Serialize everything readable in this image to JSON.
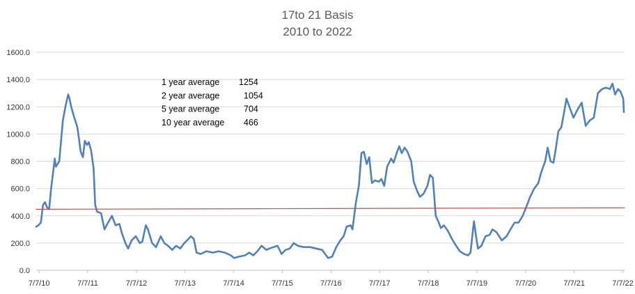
{
  "chart_data": {
    "type": "line",
    "title": "17to 21 Basis",
    "subtitle": "2010 to 2022",
    "xlabel": "",
    "ylabel": "",
    "ylim": [
      0,
      1600
    ],
    "y_ticks": [
      0,
      200,
      400,
      600,
      800,
      1000,
      1200,
      1400,
      1600
    ],
    "y_tick_labels": [
      "0.0",
      "200.0",
      "400.0",
      "600.0",
      "800.0",
      "1000.0",
      "1200.0",
      "1400.0",
      "1600.0"
    ],
    "x_range": [
      "2010-06-15",
      "2022-07-20"
    ],
    "x_ticks": [
      "2010-07-07",
      "2011-07-07",
      "2012-07-07",
      "2013-07-07",
      "2014-07-07",
      "2015-07-07",
      "2016-07-07",
      "2017-07-07",
      "2018-07-07",
      "2019-07-07",
      "2020-07-07",
      "2021-07-07",
      "2022-07-07"
    ],
    "x_tick_labels": [
      "7/7/10",
      "7/7/11",
      "7/7/12",
      "7/7/13",
      "7/7/14",
      "7/7/15",
      "7/7/16",
      "7/7/17",
      "7/7/18",
      "7/7/19",
      "7/7/20",
      "7/7/21",
      "7/7/22"
    ],
    "grid": true,
    "legend": "none",
    "series": [
      {
        "color": "#4f81bd",
        "points": [
          [
            "2010-06-15",
            320
          ],
          [
            "2010-07-01",
            330
          ],
          [
            "2010-07-20",
            350
          ],
          [
            "2010-08-05",
            480
          ],
          [
            "2010-08-20",
            500
          ],
          [
            "2010-09-05",
            460
          ],
          [
            "2010-09-20",
            450
          ],
          [
            "2010-10-05",
            600
          ],
          [
            "2010-10-20",
            720
          ],
          [
            "2010-11-01",
            820
          ],
          [
            "2010-11-10",
            760
          ],
          [
            "2010-12-05",
            800
          ],
          [
            "2011-01-01",
            1100
          ],
          [
            "2011-01-20",
            1200
          ],
          [
            "2011-02-10",
            1290
          ],
          [
            "2011-02-20",
            1260
          ],
          [
            "2011-03-05",
            1200
          ],
          [
            "2011-03-25",
            1130
          ],
          [
            "2011-04-20",
            1050
          ],
          [
            "2011-05-15",
            870
          ],
          [
            "2011-06-01",
            830
          ],
          [
            "2011-06-15",
            950
          ],
          [
            "2011-07-01",
            920
          ],
          [
            "2011-07-15",
            940
          ],
          [
            "2011-08-01",
            880
          ],
          [
            "2011-08-20",
            750
          ],
          [
            "2011-09-01",
            480
          ],
          [
            "2011-09-15",
            430
          ],
          [
            "2011-10-15",
            420
          ],
          [
            "2011-11-10",
            300
          ],
          [
            "2011-12-01",
            340
          ],
          [
            "2012-01-05",
            400
          ],
          [
            "2012-02-01",
            330
          ],
          [
            "2012-03-01",
            340
          ],
          [
            "2012-03-20",
            270
          ],
          [
            "2012-04-15",
            200
          ],
          [
            "2012-05-05",
            160
          ],
          [
            "2012-06-01",
            220
          ],
          [
            "2012-07-01",
            250
          ],
          [
            "2012-08-01",
            200
          ],
          [
            "2012-08-20",
            210
          ],
          [
            "2012-09-15",
            330
          ],
          [
            "2012-10-01",
            300
          ],
          [
            "2012-11-01",
            200
          ],
          [
            "2012-12-01",
            170
          ],
          [
            "2013-01-05",
            250
          ],
          [
            "2013-02-01",
            200
          ],
          [
            "2013-03-01",
            180
          ],
          [
            "2013-04-01",
            150
          ],
          [
            "2013-05-01",
            180
          ],
          [
            "2013-06-01",
            160
          ],
          [
            "2013-07-01",
            200
          ],
          [
            "2013-08-01",
            230
          ],
          [
            "2013-08-20",
            250
          ],
          [
            "2013-09-10",
            230
          ],
          [
            "2013-10-01",
            130
          ],
          [
            "2013-11-01",
            120
          ],
          [
            "2013-12-15",
            140
          ],
          [
            "2014-02-01",
            130
          ],
          [
            "2014-03-15",
            140
          ],
          [
            "2014-05-01",
            130
          ],
          [
            "2014-06-15",
            110
          ],
          [
            "2014-07-10",
            90
          ],
          [
            "2014-08-15",
            100
          ],
          [
            "2014-10-01",
            110
          ],
          [
            "2014-11-01",
            130
          ],
          [
            "2014-12-01",
            110
          ],
          [
            "2015-01-01",
            140
          ],
          [
            "2015-02-01",
            180
          ],
          [
            "2015-03-10",
            150
          ],
          [
            "2015-04-01",
            160
          ],
          [
            "2015-05-01",
            170
          ],
          [
            "2015-06-01",
            180
          ],
          [
            "2015-07-01",
            120
          ],
          [
            "2015-08-01",
            150
          ],
          [
            "2015-09-01",
            160
          ],
          [
            "2015-10-01",
            200
          ],
          [
            "2015-11-01",
            180
          ],
          [
            "2015-12-15",
            170
          ],
          [
            "2016-02-01",
            170
          ],
          [
            "2016-03-15",
            160
          ],
          [
            "2016-05-01",
            150
          ],
          [
            "2016-06-15",
            90
          ],
          [
            "2016-07-15",
            100
          ],
          [
            "2016-08-15",
            170
          ],
          [
            "2016-09-15",
            220
          ],
          [
            "2016-10-10",
            250
          ],
          [
            "2016-11-01",
            320
          ],
          [
            "2016-12-01",
            330
          ],
          [
            "2016-12-15",
            300
          ],
          [
            "2017-01-10",
            500
          ],
          [
            "2017-02-01",
            620
          ],
          [
            "2017-02-20",
            860
          ],
          [
            "2017-03-10",
            870
          ],
          [
            "2017-04-01",
            780
          ],
          [
            "2017-04-20",
            830
          ],
          [
            "2017-05-10",
            640
          ],
          [
            "2017-06-01",
            660
          ],
          [
            "2017-07-01",
            650
          ],
          [
            "2017-07-20",
            670
          ],
          [
            "2017-08-10",
            620
          ],
          [
            "2017-09-01",
            760
          ],
          [
            "2017-10-01",
            820
          ],
          [
            "2017-10-20",
            790
          ],
          [
            "2017-11-15",
            870
          ],
          [
            "2017-12-01",
            910
          ],
          [
            "2017-12-20",
            860
          ],
          [
            "2018-01-10",
            900
          ],
          [
            "2018-02-01",
            870
          ],
          [
            "2018-03-01",
            800
          ],
          [
            "2018-03-20",
            650
          ],
          [
            "2018-04-15",
            580
          ],
          [
            "2018-05-05",
            540
          ],
          [
            "2018-06-01",
            560
          ],
          [
            "2018-07-01",
            620
          ],
          [
            "2018-07-20",
            700
          ],
          [
            "2018-08-10",
            680
          ],
          [
            "2018-09-01",
            400
          ],
          [
            "2018-09-20",
            360
          ],
          [
            "2018-10-10",
            310
          ],
          [
            "2018-11-01",
            330
          ],
          [
            "2018-12-01",
            290
          ],
          [
            "2019-01-01",
            230
          ],
          [
            "2019-02-01",
            180
          ],
          [
            "2019-03-01",
            140
          ],
          [
            "2019-04-01",
            120
          ],
          [
            "2019-05-01",
            110
          ],
          [
            "2019-05-20",
            130
          ],
          [
            "2019-06-15",
            360
          ],
          [
            "2019-07-01",
            250
          ],
          [
            "2019-07-15",
            160
          ],
          [
            "2019-08-10",
            180
          ],
          [
            "2019-09-10",
            250
          ],
          [
            "2019-10-10",
            260
          ],
          [
            "2019-11-01",
            300
          ],
          [
            "2019-12-01",
            280
          ],
          [
            "2020-01-10",
            220
          ],
          [
            "2020-02-15",
            250
          ],
          [
            "2020-03-15",
            300
          ],
          [
            "2020-04-15",
            350
          ],
          [
            "2020-05-15",
            350
          ],
          [
            "2020-06-15",
            400
          ],
          [
            "2020-07-10",
            460
          ],
          [
            "2020-08-10",
            540
          ],
          [
            "2020-09-10",
            600
          ],
          [
            "2020-10-10",
            640
          ],
          [
            "2020-11-01",
            720
          ],
          [
            "2020-12-01",
            800
          ],
          [
            "2020-12-20",
            900
          ],
          [
            "2021-01-10",
            800
          ],
          [
            "2021-02-01",
            790
          ],
          [
            "2021-02-20",
            900
          ],
          [
            "2021-03-10",
            1020
          ],
          [
            "2021-04-01",
            1050
          ],
          [
            "2021-04-20",
            1150
          ],
          [
            "2021-05-10",
            1260
          ],
          [
            "2021-06-01",
            1200
          ],
          [
            "2021-07-01",
            1120
          ],
          [
            "2021-08-01",
            1180
          ],
          [
            "2021-09-01",
            1230
          ],
          [
            "2021-10-01",
            1060
          ],
          [
            "2021-11-01",
            1100
          ],
          [
            "2021-12-01",
            1120
          ],
          [
            "2022-01-01",
            1300
          ],
          [
            "2022-02-01",
            1330
          ],
          [
            "2022-03-01",
            1340
          ],
          [
            "2022-04-01",
            1330
          ],
          [
            "2022-04-20",
            1370
          ],
          [
            "2022-05-10",
            1290
          ],
          [
            "2022-06-01",
            1330
          ],
          [
            "2022-06-20",
            1310
          ],
          [
            "2022-07-10",
            1260
          ],
          [
            "2022-07-15",
            1160
          ]
        ]
      },
      {
        "color": "#c0504d",
        "points": [
          [
            "2010-06-15",
            448
          ],
          [
            "2014-12-31",
            452
          ],
          [
            "2022-07-20",
            459
          ]
        ]
      }
    ],
    "annotations": [
      {
        "label": "1 year average",
        "value": "1254"
      },
      {
        "label": "2 year average",
        "value": "1054"
      },
      {
        "label": "5  year average",
        "value": "704"
      },
      {
        "label": "10 year average",
        "value": "466"
      }
    ]
  }
}
